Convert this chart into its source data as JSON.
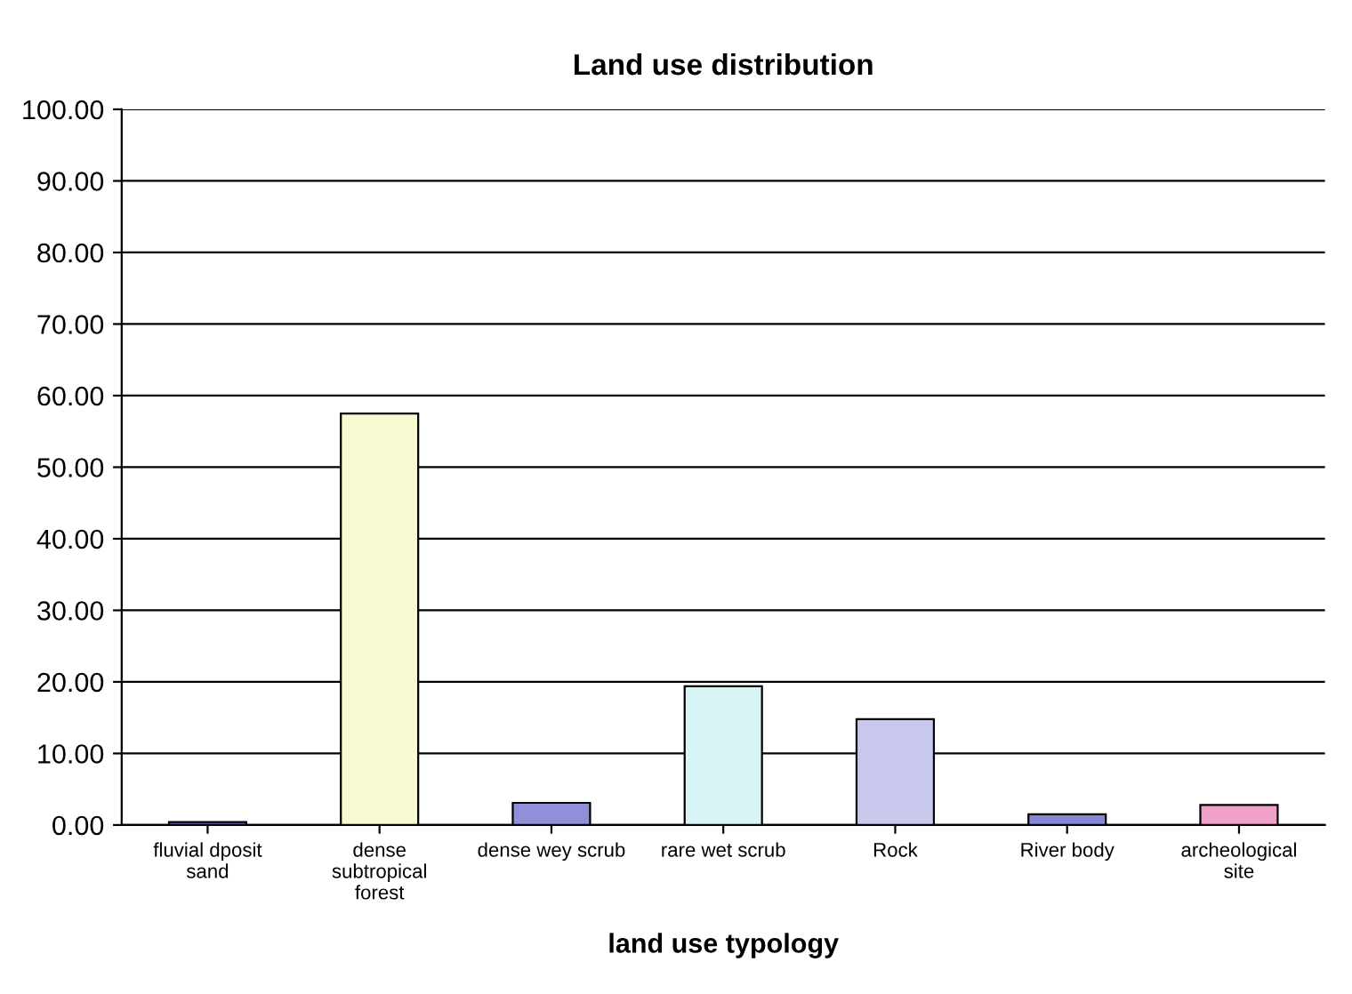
{
  "chart_data": {
    "type": "bar",
    "title": "Land use distribution",
    "xlabel": "land use typology",
    "categories": [
      "fluvial dposit sand",
      "dense subtropical forest",
      "dense wey scrub",
      "rare wet scrub",
      "Rock",
      "River body",
      "archeological site"
    ],
    "values": [
      0.4,
      57.5,
      3.1,
      19.4,
      14.8,
      1.5,
      2.8
    ],
    "colors": [
      "#7070c0",
      "#fafad2",
      "#9090d8",
      "#d8f4f4",
      "#c8c8ec",
      "#8888d8",
      "#f0a0c8"
    ],
    "ylim": [
      0,
      100
    ],
    "yticks": [
      {
        "value": 0,
        "label": "0.00"
      },
      {
        "value": 10,
        "label": "10.00"
      },
      {
        "value": 20,
        "label": "20.00"
      },
      {
        "value": 30,
        "label": "30.00"
      },
      {
        "value": 40,
        "label": "40.00"
      },
      {
        "value": 50,
        "label": "50.00"
      },
      {
        "value": 60,
        "label": "60.00"
      },
      {
        "value": 70,
        "label": "70.00"
      },
      {
        "value": 80,
        "label": "80.00"
      },
      {
        "value": 90,
        "label": "90.00"
      },
      {
        "value": 100,
        "label": "100.00"
      }
    ],
    "grid": "y"
  }
}
